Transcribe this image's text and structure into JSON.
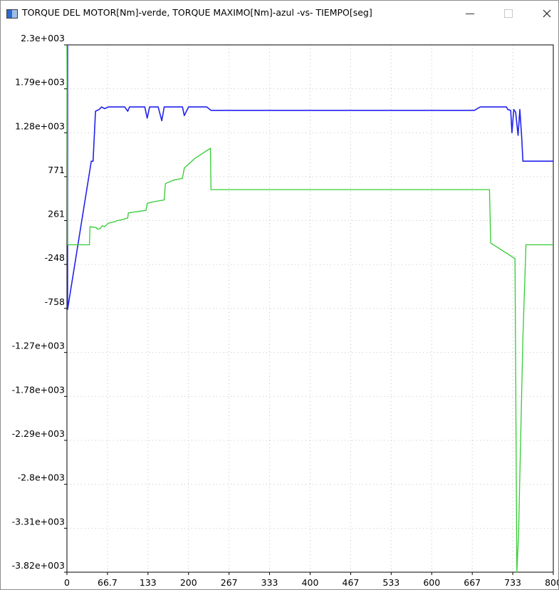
{
  "window": {
    "title": "TORQUE DEL MOTOR[Nm]-verde, TORQUE MAXIMO[Nm]-azul -vs- TIEMPO[seg]",
    "minimize_icon": "minimize-icon",
    "maximize_icon": "maximize-icon",
    "close_icon": "close-icon"
  },
  "chart_data": {
    "type": "line",
    "xlabel": "",
    "ylabel": "",
    "xlim": [
      0,
      800
    ],
    "ylim": [
      -3820,
      2300
    ],
    "x_tick_labels": [
      "0",
      "66.7",
      "133",
      "200",
      "267",
      "333",
      "400",
      "467",
      "533",
      "600",
      "667",
      "733",
      "800"
    ],
    "x_tick_values": [
      0,
      66.7,
      133.3,
      200,
      266.7,
      333.3,
      400,
      466.7,
      533.3,
      600,
      666.7,
      733.3,
      800
    ],
    "y_tick_labels": [
      "2.3e+003",
      "1.79e+003",
      "1.28e+003",
      "771",
      "261",
      "-248",
      "-758",
      "-1.27e+003",
      "-1.78e+003",
      "-2.29e+003",
      "-2.8e+003",
      "-3.31e+003",
      "-3.82e+003"
    ],
    "y_tick_values": [
      2300,
      1790,
      1280,
      771,
      261,
      -248,
      -758,
      -1270,
      -1780,
      -2290,
      -2800,
      -3310,
      -3820
    ],
    "grid": true,
    "series": [
      {
        "name": "TORQUE MAXIMO[Nm]",
        "color": "#2222ee",
        "x": [
          0,
          1,
          1,
          40,
          43,
          47,
          50,
          53,
          57,
          62,
          68,
          80,
          95,
          100,
          103,
          106,
          110,
          128,
          132,
          136,
          140,
          150,
          156,
          160,
          175,
          185,
          190,
          193,
          200,
          230,
          237,
          670,
          680,
          688,
          695,
          700,
          705,
          710,
          718,
          720,
          723,
          725,
          730,
          732,
          735,
          738,
          742,
          745,
          748,
          750,
          800
        ],
        "y": [
          2300,
          2300,
          -770,
          950,
          950,
          1530,
          1540,
          1550,
          1580,
          1560,
          1580,
          1580,
          1580,
          1530,
          1580,
          1580,
          1580,
          1580,
          1450,
          1580,
          1580,
          1580,
          1420,
          1580,
          1580,
          1580,
          1580,
          1480,
          1580,
          1580,
          1540,
          1540,
          1580,
          1580,
          1580,
          1580,
          1580,
          1580,
          1580,
          1580,
          1580,
          1550,
          1540,
          1280,
          1550,
          1520,
          1250,
          1550,
          1230,
          950,
          950
        ]
      },
      {
        "name": "TORQUE DEL MOTOR[Nm]",
        "color": "#33cc33",
        "x": [
          0,
          1,
          37,
          38,
          48,
          50,
          55,
          58,
          62,
          65,
          68,
          80,
          82,
          90,
          100,
          101,
          110,
          130,
          132,
          142,
          160,
          162,
          175,
          190,
          193,
          210,
          236,
          237,
          695,
          697,
          737,
          740,
          743,
          745,
          750,
          755,
          760,
          800
        ],
        "y": [
          2300,
          -20,
          -20,
          190,
          180,
          160,
          170,
          200,
          190,
          210,
          230,
          250,
          260,
          270,
          290,
          350,
          360,
          380,
          460,
          480,
          500,
          690,
          730,
          750,
          870,
          980,
          1100,
          620,
          620,
          0,
          -180,
          -3820,
          -3360,
          -2700,
          -1100,
          -20,
          -20,
          -20
        ]
      }
    ]
  }
}
